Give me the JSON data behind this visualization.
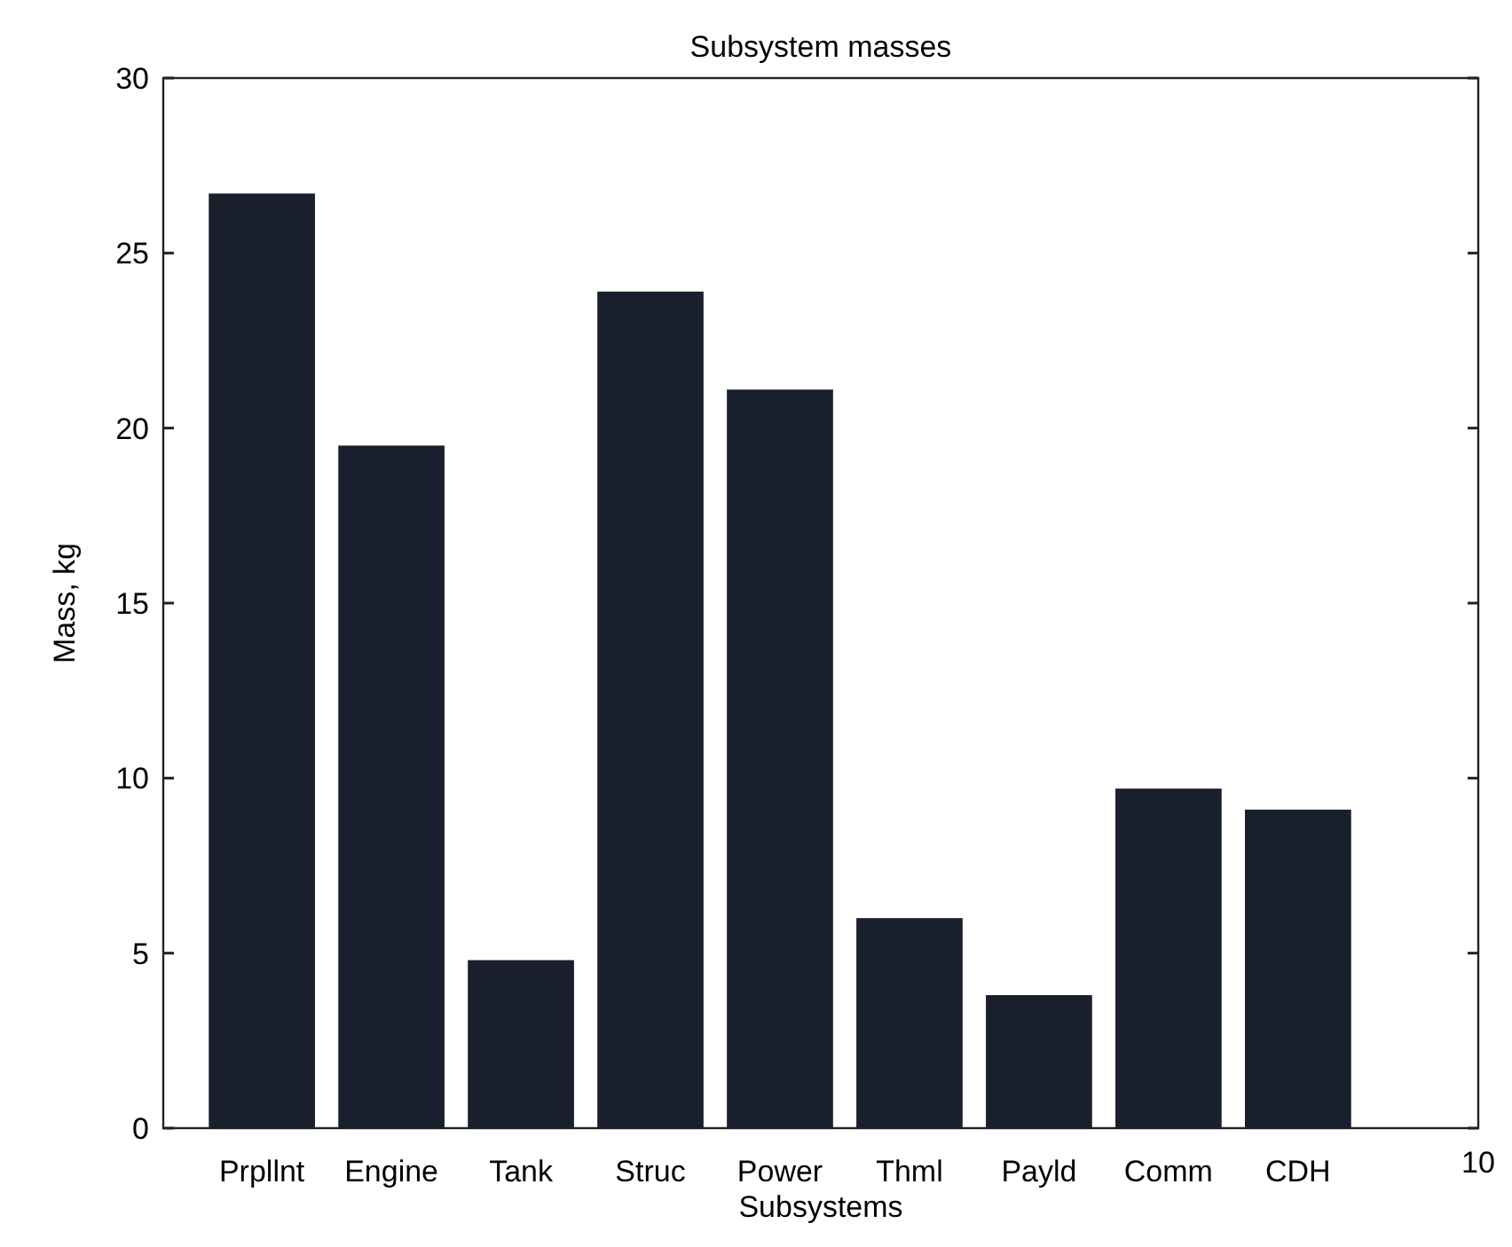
{
  "chart_data": {
    "type": "bar",
    "title": "Subsystem masses",
    "xlabel": "Subsystems",
    "ylabel": "Mass, kg",
    "categories": [
      "Prpllnt",
      "Engine",
      "Tank",
      "Struc",
      "Power",
      "Thml",
      "Payld",
      "Comm",
      "CDH"
    ],
    "values": [
      26.7,
      19.5,
      4.8,
      23.9,
      21.1,
      6.0,
      3.8,
      9.7,
      9.1
    ],
    "color": "#1a1f2e",
    "ylim": [
      0,
      30
    ],
    "yticks": [
      0,
      5,
      10,
      15,
      20,
      25,
      30
    ],
    "grid": false,
    "annotations": [
      "10"
    ]
  }
}
